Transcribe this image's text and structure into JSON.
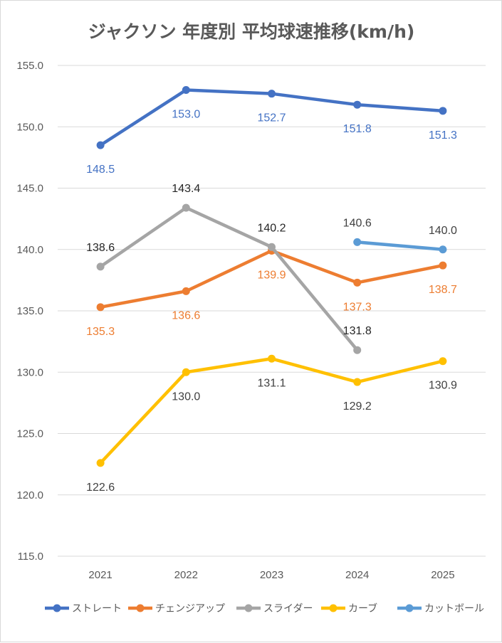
{
  "chart_data": {
    "type": "line",
    "title": "ジャクソン 年度別 平均球速推移(km/h)",
    "xlabel": "",
    "ylabel": "",
    "categories": [
      "2021",
      "2022",
      "2023",
      "2024",
      "2025"
    ],
    "ylim": [
      115.0,
      155.0
    ],
    "ytick_step": 5,
    "y_ticks": [
      "115.0",
      "120.0",
      "125.0",
      "130.0",
      "135.0",
      "140.0",
      "145.0",
      "150.0",
      "155.0"
    ],
    "grid": true,
    "legend_position": "bottom",
    "series": [
      {
        "name": "ストレート",
        "color": "#4472C4",
        "values": [
          148.5,
          153.0,
          152.7,
          151.8,
          151.3
        ],
        "labels": [
          "148.5",
          "153.0",
          "152.7",
          "151.8",
          "151.3"
        ],
        "label_color": "#4472C4",
        "label_position": "below"
      },
      {
        "name": "チェンジアップ",
        "color": "#ED7D31",
        "values": [
          135.3,
          136.6,
          139.9,
          137.3,
          138.7
        ],
        "labels": [
          "135.3",
          "136.6",
          "139.9",
          "137.3",
          "138.7"
        ],
        "label_color": "#ED7D31",
        "label_position": "below"
      },
      {
        "name": "スライダー",
        "color": "#A5A5A5",
        "values": [
          138.6,
          143.4,
          140.2,
          131.8,
          null
        ],
        "labels": [
          "138.6",
          "143.4",
          "140.2",
          "131.8",
          ""
        ],
        "label_color": "#262626",
        "label_position": "above"
      },
      {
        "name": "カーブ",
        "color": "#FFC000",
        "values": [
          122.6,
          130.0,
          131.1,
          129.2,
          130.9
        ],
        "labels": [
          "122.6",
          "130.0",
          "131.1",
          "129.2",
          "130.9"
        ],
        "label_color": "#404040",
        "label_position": "below"
      },
      {
        "name": "カットボール",
        "color": "#5B9BD5",
        "values": [
          null,
          null,
          null,
          140.6,
          140.0
        ],
        "labels": [
          "",
          "",
          "",
          "140.6",
          "140.0"
        ],
        "label_color": "#404040",
        "label_position": "above"
      }
    ]
  }
}
